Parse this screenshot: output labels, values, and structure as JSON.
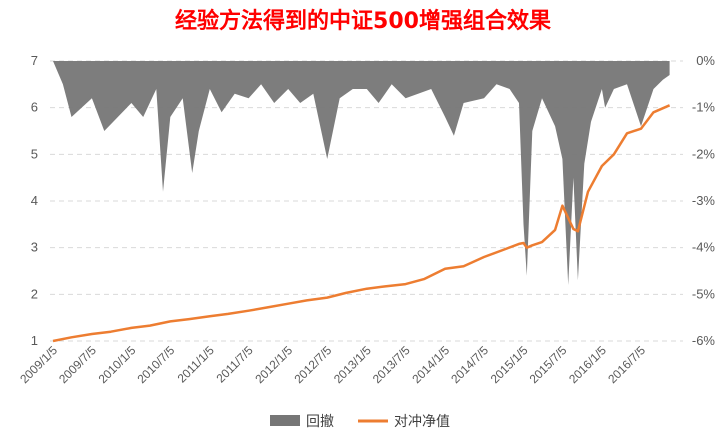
{
  "chart_data": {
    "type": "line",
    "title": "经验方法得到的中证500增强组合效果",
    "title_color": "#ff0000",
    "x_ticks": [
      "2009/1/5",
      "2009/7/5",
      "2010/1/5",
      "2010/7/5",
      "2011/1/5",
      "2011/7/5",
      "2012/1/5",
      "2012/7/5",
      "2013/1/5",
      "2013/7/5",
      "2014/1/5",
      "2014/7/5",
      "2015/1/5",
      "2015/7/5",
      "2016/1/5",
      "2016/7/5"
    ],
    "y_left": {
      "min": 1,
      "max": 7,
      "ticks": [
        "1",
        "2",
        "3",
        "4",
        "5",
        "6",
        "7"
      ]
    },
    "y_right": {
      "min": -6,
      "max": 0,
      "ticks": [
        "0%",
        "-1%",
        "-2%",
        "-3%",
        "-4%",
        "-5%",
        "-6%"
      ]
    },
    "grid": true,
    "legend_position": "bottom",
    "series": [
      {
        "name": "回撤",
        "type": "area",
        "axis": "right",
        "color": "#767676",
        "unit": "%",
        "x": [
          "2009/1/5",
          "2009/2/20",
          "2009/4/1",
          "2009/7/5",
          "2009/9/1",
          "2010/1/5",
          "2010/3/1",
          "2010/5/1",
          "2010/6/1",
          "2010/7/5",
          "2010/9/1",
          "2010/10/15",
          "2010/11/15",
          "2011/1/5",
          "2011/3/1",
          "2011/5/1",
          "2011/7/5",
          "2011/9/1",
          "2011/11/1",
          "2012/1/5",
          "2012/3/1",
          "2012/5/1",
          "2012/7/5",
          "2012/9/1",
          "2012/11/1",
          "2013/1/5",
          "2013/3/1",
          "2013/5/1",
          "2013/7/5",
          "2013/9/1",
          "2013/11/1",
          "2014/1/5",
          "2014/2/15",
          "2014/4/1",
          "2014/7/5",
          "2014/9/1",
          "2014/11/1",
          "2014/12/15",
          "2015/1/5",
          "2015/1/20",
          "2015/2/15",
          "2015/4/1",
          "2015/6/1",
          "2015/7/5",
          "2015/8/1",
          "2015/8/25",
          "2015/9/15",
          "2015/10/15",
          "2015/11/15",
          "2016/1/5",
          "2016/1/20",
          "2016/3/1",
          "2016/5/1",
          "2016/7/5",
          "2016/9/1",
          "2016/10/15",
          "2016/11/15"
        ],
        "values": [
          0,
          -0.5,
          -1.2,
          -0.8,
          -1.5,
          -0.9,
          -1.2,
          -0.6,
          -2.8,
          -1.2,
          -0.8,
          -2.4,
          -1.5,
          -0.6,
          -1.1,
          -0.7,
          -0.8,
          -0.5,
          -0.9,
          -0.6,
          -0.9,
          -0.7,
          -2.1,
          -0.8,
          -0.6,
          -0.6,
          -0.9,
          -0.5,
          -0.8,
          -0.7,
          -0.6,
          -1.2,
          -1.6,
          -0.9,
          -0.8,
          -0.5,
          -0.6,
          -0.9,
          -3.5,
          -4.6,
          -1.5,
          -0.8,
          -1.4,
          -2.1,
          -4.8,
          -2.5,
          -4.7,
          -2.2,
          -1.3,
          -0.6,
          -1.0,
          -0.6,
          -0.5,
          -1.4,
          -0.6,
          -0.4,
          -0.3
        ]
      },
      {
        "name": "对冲净值",
        "type": "line",
        "axis": "left",
        "color": "#ed7d31",
        "x": [
          "2009/1/5",
          "2009/4/1",
          "2009/7/5",
          "2009/10/1",
          "2010/1/5",
          "2010/4/1",
          "2010/7/5",
          "2010/10/1",
          "2011/1/5",
          "2011/4/1",
          "2011/7/5",
          "2011/10/1",
          "2012/1/5",
          "2012/4/1",
          "2012/7/5",
          "2012/10/1",
          "2013/1/5",
          "2013/4/1",
          "2013/7/5",
          "2013/10/1",
          "2014/1/5",
          "2014/4/1",
          "2014/7/5",
          "2014/10/1",
          "2014/12/15",
          "2015/1/5",
          "2015/1/20",
          "2015/2/15",
          "2015/4/1",
          "2015/6/1",
          "2015/7/5",
          "2015/8/25",
          "2015/9/15",
          "2015/11/1",
          "2016/1/5",
          "2016/3/1",
          "2016/5/1",
          "2016/7/5",
          "2016/9/1",
          "2016/11/15"
        ],
        "values": [
          1.0,
          1.08,
          1.15,
          1.2,
          1.28,
          1.33,
          1.42,
          1.47,
          1.53,
          1.58,
          1.65,
          1.72,
          1.8,
          1.87,
          1.93,
          2.03,
          2.12,
          2.17,
          2.22,
          2.33,
          2.55,
          2.6,
          2.8,
          2.95,
          3.08,
          3.1,
          3.0,
          3.05,
          3.12,
          3.38,
          3.9,
          3.4,
          3.35,
          4.2,
          4.75,
          5.0,
          5.45,
          5.55,
          5.9,
          6.05
        ]
      }
    ]
  }
}
